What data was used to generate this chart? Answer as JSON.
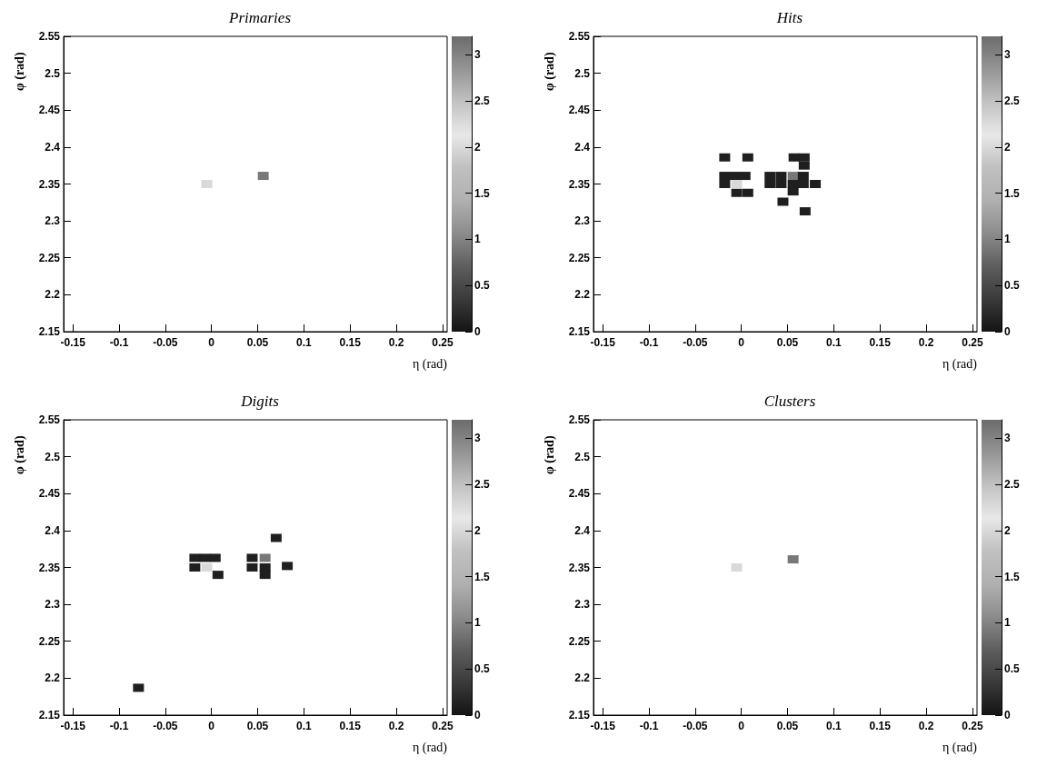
{
  "chart_data": [
    {
      "type": "scatter",
      "title": "Primaries",
      "xlabel": "η (rad)",
      "ylabel": "φ (rad)",
      "marker": "square",
      "x": [
        -0.005,
        0.056
      ],
      "values": [
        2.35,
        2.361
      ],
      "cvalues": [
        2.0,
        3.1
      ],
      "xlim": [
        -0.16,
        0.255
      ],
      "ylim": [
        2.15,
        2.55
      ],
      "xticks": [
        -0.15,
        -0.1,
        -0.05,
        0,
        0.05,
        0.1,
        0.15,
        0.2,
        0.25
      ],
      "yticks": [
        2.15,
        2.2,
        2.25,
        2.3,
        2.35,
        2.4,
        2.45,
        2.5,
        2.55
      ],
      "clim": [
        0,
        3.2
      ],
      "cticks": [
        0,
        0.5,
        1,
        1.5,
        2,
        2.5,
        3
      ]
    },
    {
      "type": "scatter",
      "title": "Hits",
      "xlabel": "η (rad)",
      "ylabel": "φ (rad)",
      "marker": "square",
      "x": [
        -0.018,
        0.007,
        0.057,
        0.068,
        0.068,
        -0.018,
        -0.007,
        0.004,
        -0.018,
        -0.005,
        -0.005,
        0.007,
        0.031,
        0.043,
        0.056,
        0.067,
        0.031,
        0.043,
        0.056,
        0.067,
        0.08,
        0.056,
        0.045,
        0.069
      ],
      "values": [
        2.386,
        2.386,
        2.386,
        2.386,
        2.375,
        2.361,
        2.361,
        2.361,
        2.35,
        2.35,
        2.338,
        2.338,
        2.361,
        2.361,
        2.361,
        2.361,
        2.35,
        2.35,
        2.35,
        2.35,
        2.35,
        2.34,
        2.326,
        2.313
      ],
      "cvalues": [
        0.1,
        0.1,
        0.1,
        0.1,
        0.1,
        0.1,
        0.1,
        0.1,
        0.1,
        2.0,
        0.1,
        0.1,
        0.1,
        0.1,
        3.1,
        0.1,
        0.1,
        0.1,
        0.1,
        0.1,
        0.1,
        0.1,
        0.1,
        0.1
      ],
      "xlim": [
        -0.16,
        0.255
      ],
      "ylim": [
        2.15,
        2.55
      ],
      "xticks": [
        -0.15,
        -0.1,
        -0.05,
        0,
        0.05,
        0.1,
        0.15,
        0.2,
        0.25
      ],
      "yticks": [
        2.15,
        2.2,
        2.25,
        2.3,
        2.35,
        2.4,
        2.45,
        2.5,
        2.55
      ],
      "clim": [
        0,
        3.2
      ],
      "cticks": [
        0,
        0.5,
        1,
        1.5,
        2,
        2.5,
        3
      ]
    },
    {
      "type": "scatter",
      "title": "Digits",
      "xlabel": "η (rad)",
      "ylabel": "φ (rad)",
      "marker": "square",
      "x": [
        -0.018,
        -0.007,
        0.004,
        -0.018,
        -0.005,
        0.007,
        0.044,
        0.058,
        0.044,
        0.058,
        0.058,
        0.07,
        0.082,
        -0.079
      ],
      "values": [
        2.363,
        2.363,
        2.363,
        2.35,
        2.35,
        2.34,
        2.363,
        2.363,
        2.35,
        2.35,
        2.34,
        2.39,
        2.352,
        2.187
      ],
      "cvalues": [
        0.1,
        0.1,
        0.1,
        0.1,
        2.0,
        0.1,
        0.1,
        3.1,
        0.1,
        0.1,
        0.1,
        0.1,
        0.1,
        0.1
      ],
      "xlim": [
        -0.16,
        0.255
      ],
      "ylim": [
        2.15,
        2.55
      ],
      "xticks": [
        -0.15,
        -0.1,
        -0.05,
        0,
        0.05,
        0.1,
        0.15,
        0.2,
        0.25
      ],
      "yticks": [
        2.15,
        2.2,
        2.25,
        2.3,
        2.35,
        2.4,
        2.45,
        2.5,
        2.55
      ],
      "clim": [
        0,
        3.2
      ],
      "cticks": [
        0,
        0.5,
        1,
        1.5,
        2,
        2.5,
        3
      ]
    },
    {
      "type": "scatter",
      "title": "Clusters",
      "xlabel": "η (rad)",
      "ylabel": "φ (rad)",
      "marker": "square",
      "x": [
        -0.005,
        0.056
      ],
      "values": [
        2.35,
        2.361
      ],
      "cvalues": [
        2.0,
        3.1
      ],
      "xlim": [
        -0.16,
        0.255
      ],
      "ylim": [
        2.15,
        2.55
      ],
      "xticks": [
        -0.15,
        -0.1,
        -0.05,
        0,
        0.05,
        0.1,
        0.15,
        0.2,
        0.25
      ],
      "yticks": [
        2.15,
        2.2,
        2.25,
        2.3,
        2.35,
        2.4,
        2.45,
        2.5,
        2.55
      ],
      "clim": [
        0,
        3.2
      ],
      "cticks": [
        0,
        0.5,
        1,
        1.5,
        2,
        2.5,
        3
      ]
    }
  ]
}
